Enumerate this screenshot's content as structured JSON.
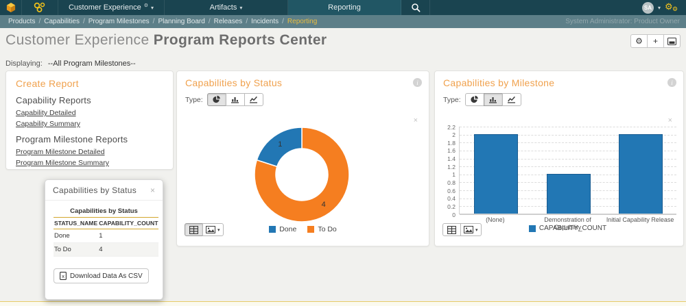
{
  "icons": {
    "gear": "⚙",
    "plus": "+",
    "close": "×",
    "caret": "▾",
    "info_letter": "i",
    "csv_letter": "x"
  },
  "topbar": {
    "menu_customer_experience": "Customer Experience",
    "menu_artifacts": "Artifacts",
    "menu_reporting": "Reporting",
    "user_initials": "SA"
  },
  "breadcrumb": {
    "items": [
      "Products",
      "Capabilities",
      "Program Milestones",
      "Planning Board",
      "Releases",
      "Incidents",
      "Reporting"
    ],
    "active_item": "Reporting",
    "right_text": "System Administrator: Product Owner"
  },
  "page": {
    "title_prefix": "Customer Experience",
    "title_main": "Program Reports Center",
    "displaying_label": "Displaying:",
    "displaying_value": "--All Program Milestones--"
  },
  "create_report_panel": {
    "title": "Create Report",
    "sections": [
      {
        "heading": "Capability Reports",
        "links": [
          "Capability Detailed",
          "Capability Summary"
        ]
      },
      {
        "heading": "Program Milestone Reports",
        "links": [
          "Program Milestone Detailed",
          "Program Milestone Summary"
        ]
      }
    ]
  },
  "status_widget": {
    "title": "Capabilities by Status",
    "type_label": "Type:",
    "active_type": "pie"
  },
  "milestone_widget": {
    "title": "Capabilities by Milestone",
    "type_label": "Type:",
    "active_type": "bar"
  },
  "status_popup": {
    "title": "Capabilities by Status",
    "table_caption": "Capabilities by Status",
    "columns": [
      "STATUS_NAME",
      "CAPABILITY_COUNT"
    ],
    "rows": [
      [
        "Done",
        "1"
      ],
      [
        "To Do",
        "4"
      ]
    ],
    "download_label": "Download Data As CSV"
  },
  "chart_data": [
    {
      "widget": "Capabilities by Status",
      "type": "pie",
      "donut": true,
      "labels": [
        "Done",
        "To Do"
      ],
      "values": [
        1,
        4
      ],
      "colors": [
        "#2277b4",
        "#f57e20"
      ],
      "data_labels": [
        "1",
        "4"
      ],
      "legend_position": "bottom"
    },
    {
      "widget": "Capabilities by Milestone",
      "type": "bar",
      "categories": [
        "(None)",
        "Demonstration of Capability",
        "Initial Capability Release"
      ],
      "values": [
        2,
        1,
        2
      ],
      "series_name": "CAPABILITY_COUNT",
      "bar_color": "#2277b4",
      "bar_border_color": "#185b90",
      "ylim": [
        0,
        2.2
      ],
      "ytick_step": 0.2,
      "grid": "dashed-horizontal",
      "legend_position": "bottom"
    }
  ],
  "colors": {
    "topbar_bg": "#1a4450",
    "breadcrumb_bg": "#5d7f88",
    "accent_heading": "#f0a14d",
    "breadcrumb_active": "#eabd3f",
    "popup_gold_line": "#d2a62b",
    "pie_blue": "#2277b4",
    "pie_orange": "#f57e20"
  }
}
